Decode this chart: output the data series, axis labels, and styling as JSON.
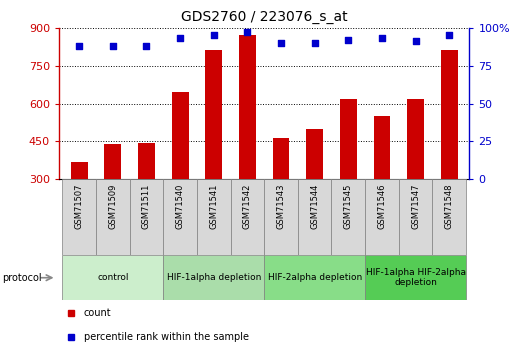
{
  "title": "GDS2760 / 223076_s_at",
  "samples": [
    "GSM71507",
    "GSM71509",
    "GSM71511",
    "GSM71540",
    "GSM71541",
    "GSM71542",
    "GSM71543",
    "GSM71544",
    "GSM71545",
    "GSM71546",
    "GSM71547",
    "GSM71548"
  ],
  "counts": [
    370,
    440,
    443,
    645,
    810,
    870,
    465,
    500,
    618,
    550,
    618,
    810
  ],
  "percentiles": [
    88,
    88,
    88,
    93,
    95,
    97,
    90,
    90,
    92,
    93,
    91,
    95
  ],
  "ylim_left": [
    300,
    900
  ],
  "ylim_right": [
    0,
    100
  ],
  "yticks_left": [
    300,
    450,
    600,
    750,
    900
  ],
  "yticks_right": [
    0,
    25,
    50,
    75,
    100
  ],
  "bar_color": "#cc0000",
  "dot_color": "#0000cc",
  "sample_box_color": "#d8d8d8",
  "groups": [
    {
      "label": "control",
      "start": 0,
      "end": 3,
      "color": "#cceecc"
    },
    {
      "label": "HIF-1alpha depletion",
      "start": 3,
      "end": 6,
      "color": "#aaddaa"
    },
    {
      "label": "HIF-2alpha depletion",
      "start": 6,
      "end": 9,
      "color": "#88dd88"
    },
    {
      "label": "HIF-1alpha HIF-2alpha\ndepletion",
      "start": 9,
      "end": 12,
      "color": "#55cc55"
    }
  ],
  "legend_items": [
    {
      "label": "count",
      "color": "#cc0000"
    },
    {
      "label": "percentile rank within the sample",
      "color": "#0000cc"
    }
  ],
  "protocol_label": "protocol",
  "axis_color_left": "#cc0000",
  "axis_color_right": "#0000cc"
}
